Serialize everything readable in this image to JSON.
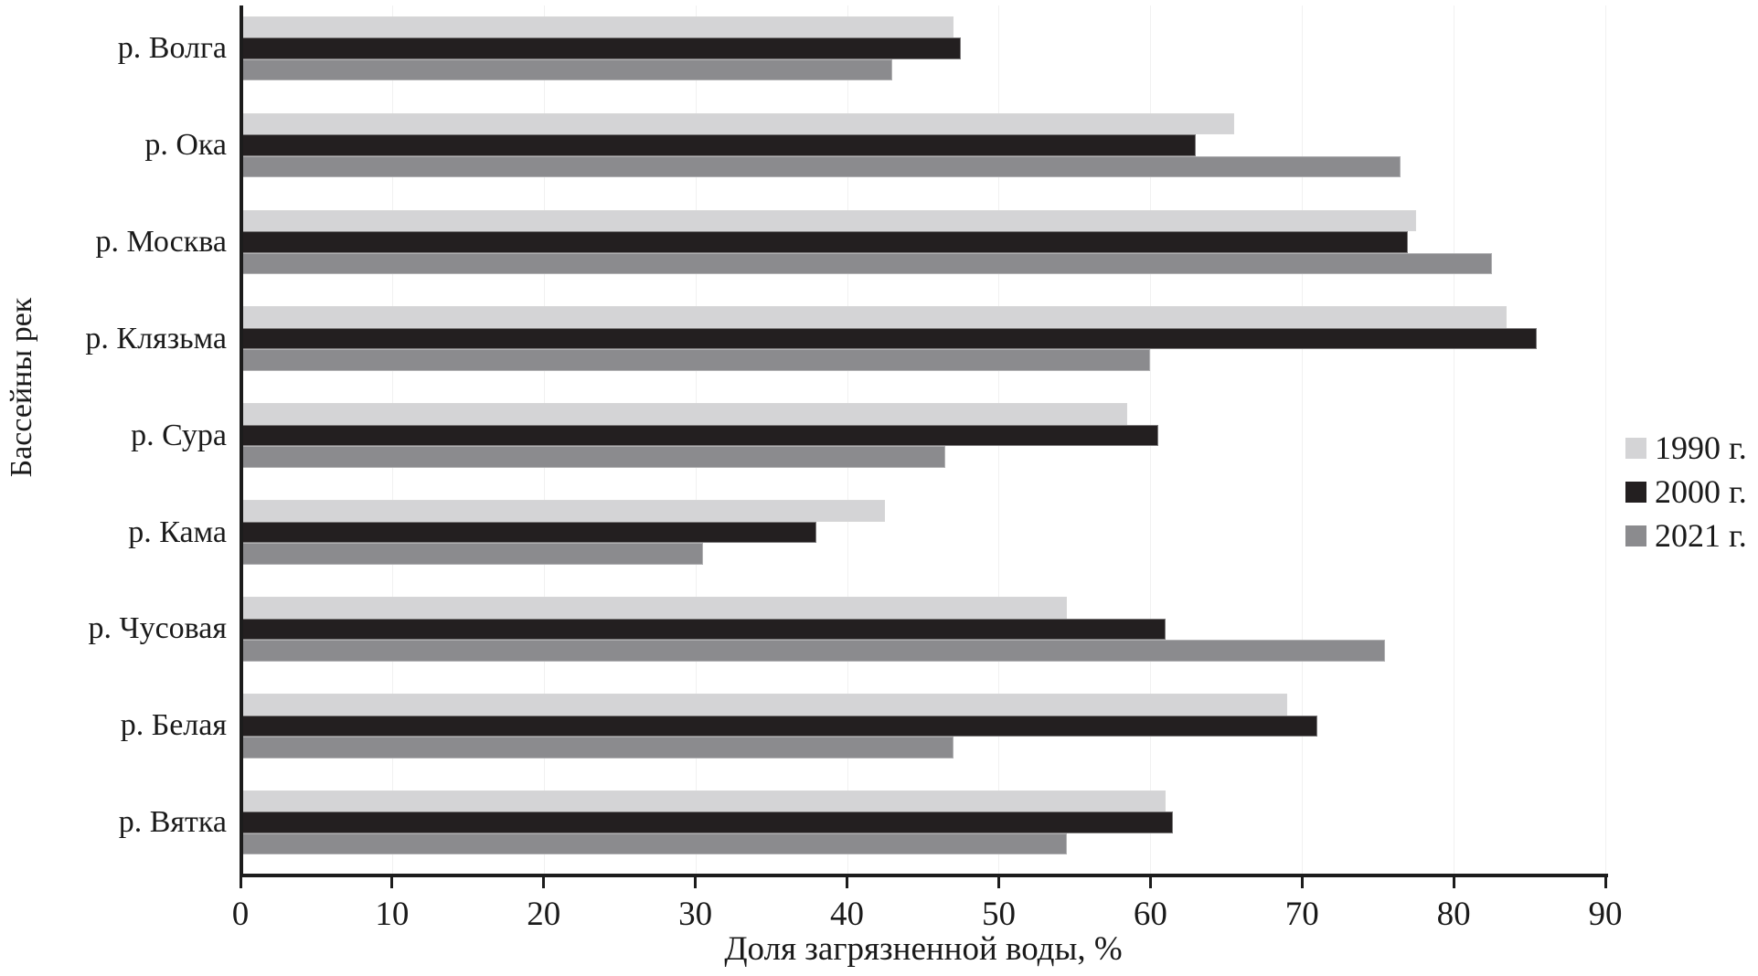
{
  "chart_data": {
    "type": "bar",
    "orientation": "horizontal",
    "title": "",
    "xlabel": "Доля загрязненной воды, %",
    "ylabel": "Бассейны рек",
    "xlim": [
      0,
      90
    ],
    "xticks": [
      0,
      10,
      20,
      30,
      40,
      50,
      60,
      70,
      80,
      90
    ],
    "grid": false,
    "legend_position": "right",
    "background": "#ffffff",
    "axis_color": "#1c1c1c",
    "categories": [
      "р. Волга",
      "р. Ока",
      "р. Москва",
      "р. Клязьма",
      "р. Сура",
      "р. Кама",
      "р. Чусовая",
      "р. Белая",
      "р. Вятка"
    ],
    "series": [
      {
        "name": "1990 г.",
        "color": "#d4d4d6",
        "values": [
          47,
          65.5,
          77.5,
          83.5,
          58.5,
          42.5,
          54.5,
          69,
          61
        ]
      },
      {
        "name": "2000 г.",
        "color": "#231f20",
        "values": [
          47.5,
          63,
          77,
          85.5,
          60.5,
          38,
          61,
          71,
          61.5
        ]
      },
      {
        "name": "2021 г.",
        "color": "#8b8b8e",
        "values": [
          43,
          76.5,
          82.5,
          60,
          46.5,
          30.5,
          75.5,
          47,
          54.5
        ]
      }
    ]
  }
}
